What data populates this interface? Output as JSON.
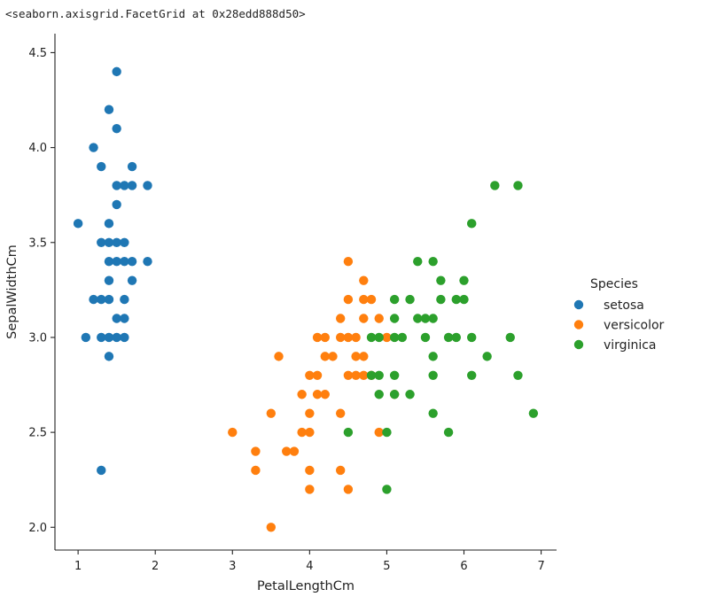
{
  "output_repr": "<seaborn.axisgrid.FacetGrid at 0x28edd888d50>",
  "chart_data": {
    "type": "scatter",
    "title": "",
    "xlabel": "PetalLengthCm",
    "ylabel": "SepalWidthCm",
    "xlim": [
      0.7,
      7.2
    ],
    "ylim": [
      1.88,
      4.6
    ],
    "xticks": [
      1,
      2,
      3,
      4,
      5,
      6,
      7
    ],
    "xtick_labels": [
      "1",
      "2",
      "3",
      "4",
      "5",
      "6",
      "7"
    ],
    "yticks": [
      2.0,
      2.5,
      3.0,
      3.5,
      4.0,
      4.5
    ],
    "ytick_labels": [
      "2.0",
      "2.5",
      "3.0",
      "3.5",
      "4.0",
      "4.5"
    ],
    "grid": false,
    "legend": {
      "title": "Species",
      "placement": "center-right outside"
    },
    "series": [
      {
        "name": "setosa",
        "color": "#1f77b4",
        "points": [
          [
            1.0,
            3.6
          ],
          [
            1.1,
            3.0
          ],
          [
            1.2,
            4.0
          ],
          [
            1.2,
            3.2
          ],
          [
            1.3,
            3.9
          ],
          [
            1.3,
            3.5
          ],
          [
            1.3,
            3.2
          ],
          [
            1.3,
            3.0
          ],
          [
            1.3,
            2.3
          ],
          [
            1.4,
            4.2
          ],
          [
            1.4,
            3.6
          ],
          [
            1.4,
            3.5
          ],
          [
            1.4,
            3.4
          ],
          [
            1.4,
            3.3
          ],
          [
            1.4,
            3.2
          ],
          [
            1.4,
            3.0
          ],
          [
            1.4,
            2.9
          ],
          [
            1.5,
            4.4
          ],
          [
            1.5,
            4.1
          ],
          [
            1.5,
            3.8
          ],
          [
            1.5,
            3.7
          ],
          [
            1.5,
            3.5
          ],
          [
            1.5,
            3.4
          ],
          [
            1.5,
            3.1
          ],
          [
            1.5,
            3.0
          ],
          [
            1.6,
            3.8
          ],
          [
            1.6,
            3.5
          ],
          [
            1.6,
            3.4
          ],
          [
            1.6,
            3.2
          ],
          [
            1.6,
            3.1
          ],
          [
            1.6,
            3.0
          ],
          [
            1.7,
            3.9
          ],
          [
            1.7,
            3.8
          ],
          [
            1.7,
            3.4
          ],
          [
            1.7,
            3.3
          ],
          [
            1.9,
            3.8
          ],
          [
            1.9,
            3.4
          ]
        ]
      },
      {
        "name": "versicolor",
        "color": "#ff7f0e",
        "points": [
          [
            3.0,
            2.5
          ],
          [
            3.3,
            2.4
          ],
          [
            3.3,
            2.3
          ],
          [
            3.5,
            2.0
          ],
          [
            3.5,
            2.6
          ],
          [
            3.6,
            2.9
          ],
          [
            3.7,
            2.4
          ],
          [
            3.8,
            2.4
          ],
          [
            3.9,
            2.7
          ],
          [
            3.9,
            2.5
          ],
          [
            4.0,
            2.8
          ],
          [
            4.0,
            2.6
          ],
          [
            4.0,
            2.5
          ],
          [
            4.0,
            2.3
          ],
          [
            4.0,
            2.2
          ],
          [
            4.1,
            3.0
          ],
          [
            4.1,
            2.8
          ],
          [
            4.1,
            2.7
          ],
          [
            4.2,
            3.0
          ],
          [
            4.2,
            2.9
          ],
          [
            4.2,
            2.7
          ],
          [
            4.3,
            2.9
          ],
          [
            4.4,
            3.1
          ],
          [
            4.4,
            3.0
          ],
          [
            4.4,
            2.6
          ],
          [
            4.4,
            2.3
          ],
          [
            4.5,
            3.4
          ],
          [
            4.5,
            3.2
          ],
          [
            4.5,
            3.0
          ],
          [
            4.5,
            2.8
          ],
          [
            4.5,
            2.2
          ],
          [
            4.6,
            3.0
          ],
          [
            4.6,
            2.9
          ],
          [
            4.6,
            2.8
          ],
          [
            4.7,
            3.3
          ],
          [
            4.7,
            3.2
          ],
          [
            4.7,
            3.1
          ],
          [
            4.7,
            2.9
          ],
          [
            4.7,
            2.8
          ],
          [
            4.8,
            3.2
          ],
          [
            4.8,
            2.8
          ],
          [
            4.9,
            3.1
          ],
          [
            4.9,
            2.5
          ],
          [
            5.0,
            3.0
          ],
          [
            5.1,
            2.7
          ]
        ]
      },
      {
        "name": "virginica",
        "color": "#2ca02c",
        "points": [
          [
            4.5,
            2.5
          ],
          [
            4.8,
            3.0
          ],
          [
            4.8,
            2.8
          ],
          [
            4.9,
            3.0
          ],
          [
            4.9,
            2.8
          ],
          [
            4.9,
            2.7
          ],
          [
            5.0,
            2.5
          ],
          [
            5.0,
            2.2
          ],
          [
            5.1,
            3.2
          ],
          [
            5.1,
            3.1
          ],
          [
            5.1,
            3.0
          ],
          [
            5.1,
            2.8
          ],
          [
            5.1,
            2.7
          ],
          [
            5.2,
            3.0
          ],
          [
            5.3,
            3.2
          ],
          [
            5.3,
            2.7
          ],
          [
            5.4,
            3.4
          ],
          [
            5.4,
            3.1
          ],
          [
            5.5,
            3.1
          ],
          [
            5.5,
            3.0
          ],
          [
            5.6,
            3.4
          ],
          [
            5.6,
            3.1
          ],
          [
            5.6,
            2.9
          ],
          [
            5.6,
            2.8
          ],
          [
            5.6,
            2.6
          ],
          [
            5.7,
            3.3
          ],
          [
            5.7,
            3.2
          ],
          [
            5.8,
            3.0
          ],
          [
            5.8,
            2.5
          ],
          [
            5.9,
            3.2
          ],
          [
            5.9,
            3.0
          ],
          [
            6.0,
            3.3
          ],
          [
            6.0,
            3.2
          ],
          [
            6.1,
            3.6
          ],
          [
            6.1,
            3.0
          ],
          [
            6.1,
            2.8
          ],
          [
            6.3,
            2.9
          ],
          [
            6.4,
            3.8
          ],
          [
            6.6,
            3.0
          ],
          [
            6.7,
            3.8
          ],
          [
            6.7,
            2.8
          ],
          [
            6.9,
            2.6
          ]
        ]
      }
    ]
  }
}
